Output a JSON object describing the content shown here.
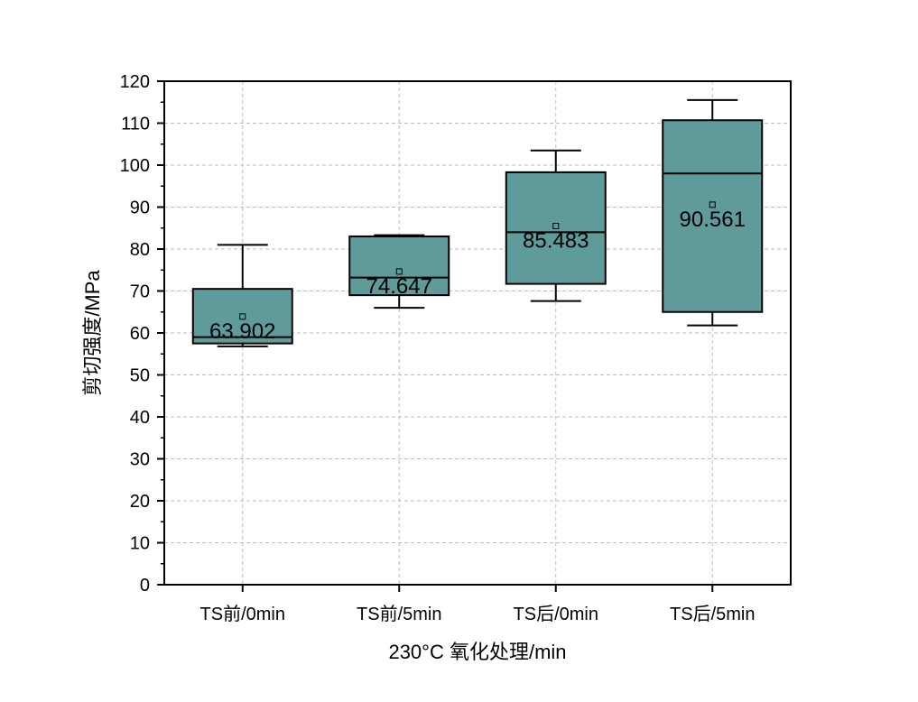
{
  "chart_data": {
    "type": "box",
    "title": "",
    "xlabel": "230°C 氧化处理/min",
    "ylabel": "剪切强度/MPa",
    "ylim": [
      0,
      120
    ],
    "yticks": [
      0,
      10,
      20,
      30,
      40,
      50,
      60,
      70,
      80,
      90,
      100,
      110,
      120
    ],
    "grid": true,
    "box_color": "#5f9b9b",
    "categories": [
      "TS前/0min",
      "TS前/5min",
      "TS后/0min",
      "TS后/5min"
    ],
    "boxes": [
      {
        "category": "TS前/0min",
        "whisker_low": 56.8,
        "q1": 57.5,
        "median": 59.0,
        "q3": 70.5,
        "whisker_high": 81.0,
        "mean": 63.902,
        "mean_label": "63.902"
      },
      {
        "category": "TS前/5min",
        "whisker_low": 66.0,
        "q1": 69.0,
        "median": 73.2,
        "q3": 83.0,
        "whisker_high": 83.3,
        "mean": 74.647,
        "mean_label": "74.647"
      },
      {
        "category": "TS后/0min",
        "whisker_low": 67.6,
        "q1": 71.7,
        "median": 84.0,
        "q3": 98.3,
        "whisker_high": 103.5,
        "mean": 85.483,
        "mean_label": "85.483"
      },
      {
        "category": "TS后/5min",
        "whisker_low": 61.8,
        "q1": 65.0,
        "median": 98.0,
        "q3": 110.7,
        "whisker_high": 115.5,
        "mean": 90.561,
        "mean_label": "90.561"
      }
    ]
  }
}
